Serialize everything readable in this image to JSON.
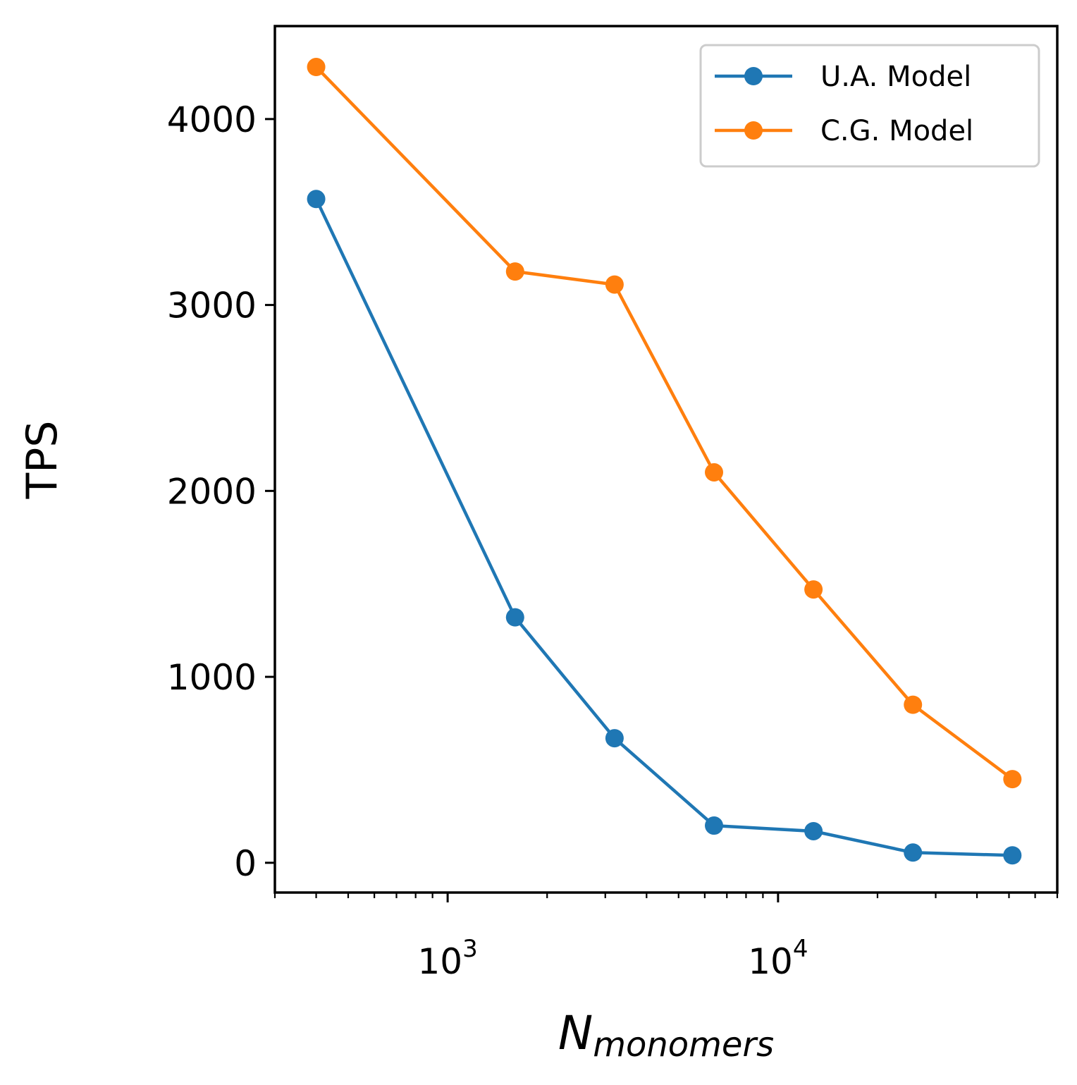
{
  "chart_data": {
    "type": "line",
    "xscale": "log",
    "xlim": [
      300,
      70000
    ],
    "ylim": [
      -160,
      4500
    ],
    "yticks": [
      0,
      1000,
      2000,
      3000,
      4000
    ],
    "ytick_labels": [
      "0",
      "1000",
      "2000",
      "3000",
      "4000"
    ],
    "xticks_major": [
      1000,
      10000
    ],
    "xtick_labels": [
      {
        "base": "10",
        "exp": "3"
      },
      {
        "base": "10",
        "exp": "4"
      }
    ],
    "xlabel": {
      "main": "N",
      "sub": "monomers"
    },
    "ylabel": "TPS",
    "legend_position": "top-right",
    "series": [
      {
        "name": "U.A. Model",
        "color": "#1f77b4",
        "x": [
          400,
          1600,
          3200,
          6400,
          12800,
          25600,
          51200
        ],
        "values": [
          3570,
          1320,
          670,
          200,
          170,
          55,
          40
        ]
      },
      {
        "name": "C.G. Model",
        "color": "#ff7f0e",
        "x": [
          400,
          1600,
          3200,
          6400,
          12800,
          25600,
          51200
        ],
        "values": [
          4280,
          3180,
          3110,
          2100,
          1470,
          850,
          450
        ]
      }
    ]
  }
}
